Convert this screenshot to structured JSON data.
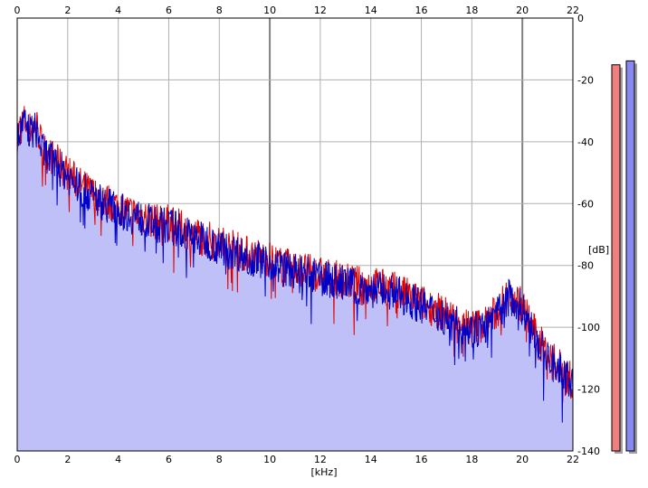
{
  "chart_data": {
    "type": "area",
    "xlabel": "[kHz]",
    "ylabel": "[dB]",
    "xlim": [
      0,
      22
    ],
    "ylim": [
      -140,
      0
    ],
    "x_ticks": [
      "0",
      "2",
      "4",
      "6",
      "8",
      "10",
      "12",
      "14",
      "16",
      "18",
      "20",
      "22"
    ],
    "y_ticks": [
      "0",
      "-20",
      "-40",
      "-60",
      "-80",
      "-100",
      "-120",
      "-140"
    ],
    "grid": true,
    "colors": {
      "left_channel": "#e00000",
      "right_channel": "#0000c8",
      "fill": "#c0c0f8",
      "level_left": "#f08080",
      "level_right": "#8888f0"
    },
    "series": [
      {
        "x": [
          0,
          0.25,
          0.5,
          0.75,
          1,
          1.5,
          2,
          2.5,
          3,
          3.5,
          4,
          4.5,
          5,
          5.5,
          6,
          6.5,
          7,
          7.5,
          8,
          8.5,
          9,
          9.5,
          10,
          10.5,
          11,
          11.5,
          12,
          12.5,
          13,
          13.5,
          14,
          14.5,
          15,
          15.5,
          16,
          16.5,
          17,
          17.5,
          18,
          18.5,
          19,
          19.5,
          20,
          20.5,
          21,
          21.5,
          22
        ],
        "values": [
          -38,
          -33,
          -36,
          -34,
          -42,
          -46,
          -50,
          -54,
          -57,
          -59,
          -61,
          -63,
          -64,
          -66,
          -66,
          -68,
          -70,
          -71,
          -73,
          -74,
          -76,
          -77,
          -78,
          -80,
          -81,
          -82,
          -83,
          -84,
          -85,
          -86,
          -86,
          -87,
          -88,
          -90,
          -92,
          -94,
          -96,
          -98,
          -100,
          -99,
          -95,
          -89,
          -93,
          -102,
          -109,
          -113,
          -118
        ]
      },
      {
        "x": [
          0,
          0.25,
          0.5,
          0.75,
          1,
          1.5,
          2,
          2.5,
          3,
          3.5,
          4,
          4.5,
          5,
          5.5,
          6,
          6.5,
          7,
          7.5,
          8,
          8.5,
          9,
          9.5,
          10,
          10.5,
          11,
          11.5,
          12,
          12.5,
          13,
          13.5,
          14,
          14.5,
          15,
          15.5,
          16,
          16.5,
          17,
          17.5,
          18,
          18.5,
          19,
          19.5,
          20,
          20.5,
          21,
          21.5,
          22
        ],
        "values": [
          -40,
          -34,
          -37,
          -36,
          -43,
          -47,
          -51,
          -55,
          -58,
          -60,
          -62,
          -64,
          -65,
          -67,
          -67,
          -69,
          -71,
          -72,
          -74,
          -75,
          -77,
          -78,
          -79,
          -81,
          -82,
          -83,
          -84,
          -85,
          -86,
          -87,
          -88,
          -88,
          -89,
          -91,
          -93,
          -95,
          -97,
          -99,
          -101,
          -100,
          -96,
          -90,
          -94,
          -103,
          -110,
          -114,
          -119
        ]
      }
    ],
    "levels": [
      0.98,
      0.99
    ]
  }
}
